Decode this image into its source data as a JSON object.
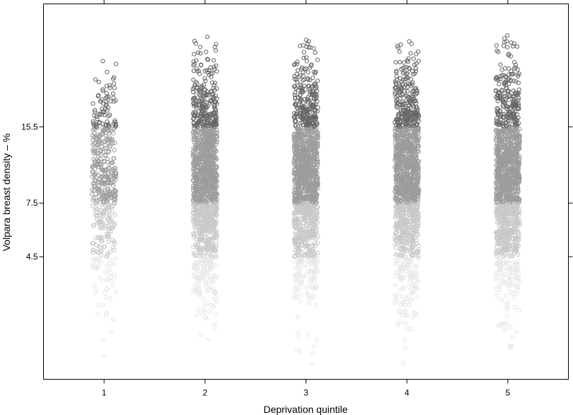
{
  "chart_data": {
    "type": "scatter",
    "xlabel": "Deprivation quintile",
    "ylabel": "Volpara breast density – %",
    "x_ticks": [
      "1",
      "2",
      "3",
      "4",
      "5"
    ],
    "y_ticks": [
      {
        "value": 4.5,
        "label": "4.5"
      },
      {
        "value": 7.5,
        "label": "7.5"
      },
      {
        "value": 15.5,
        "label": "15.5"
      }
    ],
    "y_scale": "log",
    "ylim": [
      1.4,
      50
    ],
    "xlim": [
      0.4,
      5.6
    ],
    "grid": false,
    "categories_density_bands": [
      {
        "from": 1.4,
        "to": 4.5,
        "color": "#e6e6e6"
      },
      {
        "from": 4.5,
        "to": 7.5,
        "color": "#c8c8c8"
      },
      {
        "from": 7.5,
        "to": 15.5,
        "color": "#9c9c9c"
      },
      {
        "from": 15.5,
        "to": 50,
        "color": "#666666"
      }
    ],
    "series": [
      {
        "x": 1,
        "y_min": 1.75,
        "y_max": 29.0,
        "relative_count": 0.35
      },
      {
        "x": 2,
        "y_min": 2.05,
        "y_max": 36.5,
        "relative_count": 1.0
      },
      {
        "x": 3,
        "y_min": 1.63,
        "y_max": 35.5,
        "relative_count": 1.0
      },
      {
        "x": 4,
        "y_min": 1.63,
        "y_max": 35.0,
        "relative_count": 1.0
      },
      {
        "x": 5,
        "y_min": 1.9,
        "y_max": 37.0,
        "relative_count": 1.0
      }
    ]
  }
}
